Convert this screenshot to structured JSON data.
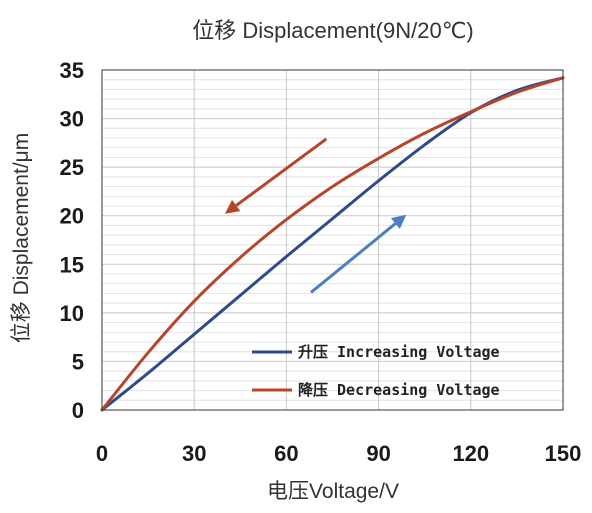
{
  "chart_data": {
    "type": "line",
    "title": "位移 Displacement(9N/20℃)",
    "xlabel": "电压Voltage/V",
    "ylabel": "位移 Displacement/μm",
    "xlim": [
      0,
      150
    ],
    "ylim": [
      0,
      35
    ],
    "x_ticks": [
      0,
      30,
      60,
      90,
      120,
      150
    ],
    "y_ticks": [
      0,
      5,
      10,
      15,
      20,
      25,
      30,
      35
    ],
    "x_tick_labels": [
      "0",
      "30",
      "60",
      "90",
      "120",
      "150"
    ],
    "y_tick_labels": [
      "0",
      "5",
      "10",
      "15",
      "20",
      "25",
      "30",
      "35"
    ],
    "grid": true,
    "legend_position": "bottom-right",
    "series": [
      {
        "name": "升压 Increasing Voltage",
        "color": "#2e4a8c",
        "x": [
          0,
          15,
          30,
          45,
          60,
          75,
          90,
          105,
          120,
          135,
          150
        ],
        "y": [
          0,
          3.8,
          7.8,
          11.8,
          15.8,
          19.7,
          23.6,
          27.3,
          30.6,
          32.9,
          34.2
        ]
      },
      {
        "name": "降压 Decreasing Voltage",
        "color": "#b5462a",
        "x": [
          0,
          15,
          30,
          45,
          60,
          75,
          90,
          105,
          120,
          135,
          150
        ],
        "y": [
          0,
          5.9,
          11.2,
          15.7,
          19.6,
          23.0,
          25.9,
          28.5,
          30.7,
          32.7,
          34.2
        ]
      }
    ],
    "annotations": [
      {
        "type": "arrow",
        "meaning": "decreasing-direction",
        "color": "#b5462a",
        "from": [
          73,
          27.9
        ],
        "to": [
          40,
          20.2
        ]
      },
      {
        "type": "arrow",
        "meaning": "increasing-direction",
        "color": "#4a7fc1",
        "from": [
          68,
          12.1
        ],
        "to": [
          99,
          20.1
        ]
      }
    ]
  }
}
